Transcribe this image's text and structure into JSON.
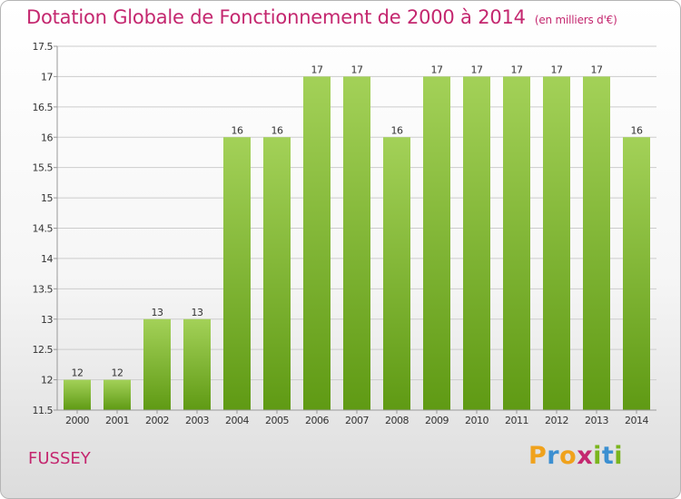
{
  "title": "Dotation Globale de Fonctionnement de 2000 à 2014",
  "subtitle": "(en milliers d'€)",
  "commune": "FUSSEY",
  "brand": {
    "letters": [
      "P",
      "r",
      "o",
      "x",
      "i",
      "t",
      "i"
    ],
    "colors": [
      "#f0a21c",
      "#3b8fd1",
      "#f0a21c",
      "#c4276f",
      "#7ab51d",
      "#3b8fd1",
      "#7ab51d"
    ]
  },
  "chart_data": {
    "type": "bar",
    "title": "Dotation Globale de Fonctionnement de 2000 à 2014",
    "subtitle": "(en milliers d'€)",
    "categories": [
      "2000",
      "2001",
      "2002",
      "2003",
      "2004",
      "2005",
      "2006",
      "2007",
      "2008",
      "2009",
      "2010",
      "2011",
      "2012",
      "2013",
      "2014"
    ],
    "values": [
      12,
      12,
      13,
      13,
      16,
      16,
      17,
      17,
      16,
      17,
      17,
      17,
      17,
      17,
      16
    ],
    "data_labels": [
      "12",
      "12",
      "13",
      "13",
      "16",
      "16",
      "17",
      "17",
      "16",
      "17",
      "17",
      "17",
      "17",
      "17",
      "16"
    ],
    "ylim": [
      11.5,
      17.5
    ],
    "yticks": [
      "11.5",
      "12",
      "12.5",
      "13",
      "13.5",
      "14",
      "14.5",
      "15",
      "15.5",
      "16",
      "16.5",
      "17",
      "17.5"
    ],
    "grid": true,
    "colors": {
      "bar_top": "#a3d158",
      "bar_bottom": "#5f9a14",
      "grid": "#cccccc",
      "axis": "#999999",
      "label": "#333333"
    }
  }
}
